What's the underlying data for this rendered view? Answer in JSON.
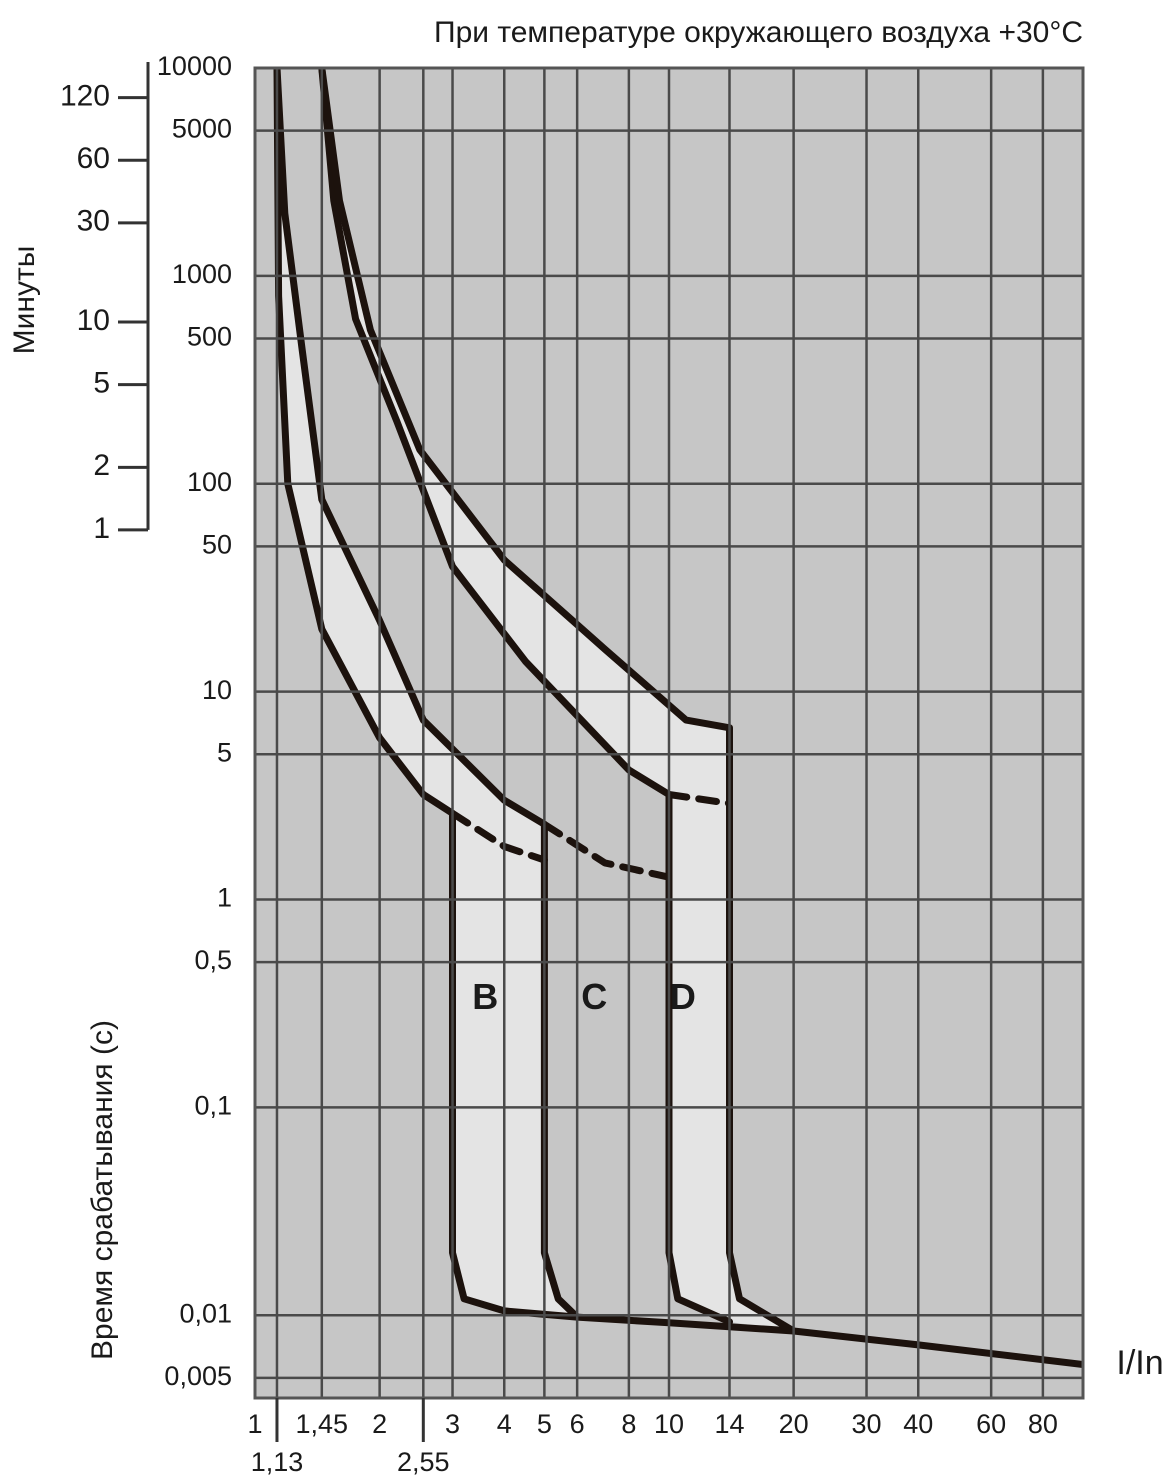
{
  "chart_data": {
    "type": "line",
    "title": "При температуре окружающего воздуха +30°C",
    "y_label": "Время срабатывания (с)",
    "y2_label": "Минуты",
    "x_label": "I/In",
    "log_x": true,
    "log_y": true,
    "grid": true,
    "background": "#c6c6c6",
    "band_color": "#e4e4e4",
    "xlim": [
      1,
      100
    ],
    "ylim": [
      0.004,
      10000
    ],
    "y2lim": [
      6.67e-05,
      166.67
    ],
    "xticks": [
      1,
      {
        "value": 1.45,
        "label": "1,45"
      },
      2,
      3,
      4,
      5,
      6,
      8,
      10,
      14,
      20,
      30,
      40,
      60,
      80
    ],
    "xticks_lower": [
      {
        "value": 1.13,
        "label": "1,13"
      },
      {
        "value": 2.55,
        "label": "2,55"
      }
    ],
    "yticks": [
      10000,
      5000,
      1000,
      500,
      100,
      50,
      10,
      5,
      1,
      {
        "value": 0.5,
        "label": "0,5"
      },
      {
        "value": 0.1,
        "label": "0,1"
      },
      {
        "value": 0.01,
        "label": "0,01"
      },
      {
        "value": 0.005,
        "label": "0,005"
      }
    ],
    "y2ticks": [
      120,
      60,
      30,
      10,
      5,
      2,
      1
    ],
    "series": [
      {
        "color": "#1c120d",
        "dashed": false,
        "x": [
          1.13,
          1.14,
          1.2,
          1.45,
          2,
          2.55,
          3,
          3,
          3.2,
          4
        ],
        "values": [
          10000,
          800,
          100,
          20,
          6,
          3.2,
          2.6,
          0.02,
          0.012,
          0.0105
        ]
      },
      {
        "color": "#1c120d",
        "dashed": false,
        "x": [
          1.13,
          1.18,
          1.3,
          1.45,
          2,
          2.55,
          4,
          5,
          5,
          5.4,
          6
        ],
        "values": [
          10000,
          2000,
          440,
          84,
          22,
          7.3,
          3,
          2.3,
          0.02,
          0.012,
          0.0098
        ]
      },
      {
        "color": "#1c120d",
        "dashed": false,
        "x": [
          1.45,
          1.55,
          1.75,
          2.2,
          3,
          4.5,
          8,
          10,
          10,
          10.5,
          14
        ],
        "values": [
          10000,
          2300,
          620,
          200,
          40,
          14,
          4.2,
          3.2,
          0.02,
          0.012,
          0.0093
        ]
      },
      {
        "color": "#1c120d",
        "dashed": false,
        "x": [
          1.45,
          1.6,
          1.9,
          2.5,
          4,
          7,
          11,
          14,
          14,
          14.8,
          20
        ],
        "values": [
          10000,
          2300,
          550,
          146,
          43,
          16,
          7.3,
          6.7,
          0.02,
          0.012,
          0.0084
        ]
      },
      {
        "color": "#1c120d",
        "dashed": false,
        "x": [
          4,
          6,
          10,
          20,
          40,
          100
        ],
        "values": [
          0.0105,
          0.0098,
          0.0092,
          0.0084,
          0.0072,
          0.0058
        ]
      },
      {
        "color": "#1c120d",
        "dashed": true,
        "x": [
          3,
          4,
          5
        ],
        "values": [
          2.6,
          1.8,
          1.55
        ]
      },
      {
        "color": "#1c120d",
        "dashed": true,
        "x": [
          5,
          7,
          10
        ],
        "values": [
          2.3,
          1.5,
          1.28
        ]
      },
      {
        "color": "#1c120d",
        "dashed": true,
        "x": [
          10,
          14
        ],
        "values": [
          3.2,
          2.9
        ]
      }
    ],
    "bands": [
      [
        0,
        1
      ],
      [
        2,
        3
      ]
    ],
    "annotations": [
      {
        "text": "B",
        "x": 3.6,
        "y": 0.33
      },
      {
        "text": "C",
        "x": 6.6,
        "y": 0.33
      },
      {
        "text": "D",
        "x": 10.8,
        "y": 0.33
      }
    ]
  }
}
